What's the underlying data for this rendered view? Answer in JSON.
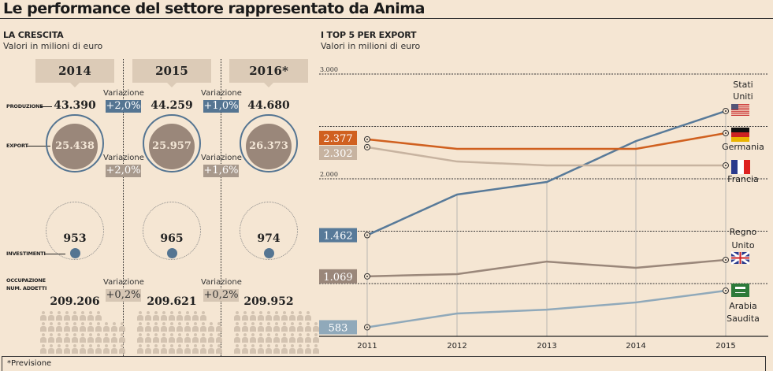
{
  "title": "Le performance del settore rappresentato da Anima",
  "left": {
    "heading": "LA CRESCITA",
    "subtitle": "Valori in milioni di euro",
    "row_labels": {
      "produzione": "PRODUZIONE",
      "export": "EXPORT",
      "investimenti": "INVESTIMENTI",
      "occupazione": "OCCUPAZIONE",
      "addetti": "NUM. ADDETTI"
    },
    "variation_label": "Variazione",
    "years": [
      {
        "year": "2014",
        "produzione": "43.390",
        "export": "25.438",
        "investimenti": "953",
        "addetti": "209.206",
        "people_first_row": 8
      },
      {
        "year": "2015",
        "produzione": "44.259",
        "export": "25.957",
        "investimenti": "965",
        "addetti": "209.621",
        "people_first_row": 9
      },
      {
        "year": "2016*",
        "produzione": "44.680",
        "export": "26.373",
        "investimenti": "974",
        "addetti": "209.952",
        "people_first_row": 10
      }
    ],
    "variations": [
      {
        "produzione": "+2,0%",
        "export": "+2,0%",
        "addetti": "+0,2%"
      },
      {
        "produzione": "+1,0%",
        "export": "+1,6%",
        "addetti": "+0,2%"
      }
    ]
  },
  "footnote": "*Previsione",
  "chart_data": {
    "type": "line",
    "title": "I TOP 5 PER EXPORT",
    "subtitle": "Valori in milioni di euro",
    "x": [
      "2011",
      "2012",
      "2013",
      "2014",
      "2015"
    ],
    "ylim": [
      500,
      3000
    ],
    "yticks": [
      {
        "value": 3000,
        "label": "3.000"
      },
      {
        "value": 2000,
        "label": "2.000"
      }
    ],
    "gridlines": [
      3000,
      2500,
      2000,
      1500,
      1000
    ],
    "series": [
      {
        "name": "Stati Uniti",
        "label_lines": [
          "Stati",
          "Uniti"
        ],
        "start_label": "1.462",
        "color": "#587a99",
        "values": [
          1462,
          1850,
          1970,
          2360,
          2647
        ]
      },
      {
        "name": "Germania",
        "label_lines": [
          "Germania"
        ],
        "start_label": "2.377",
        "color": "#d0601f",
        "values": [
          2377,
          2286,
          2286,
          2286,
          2436
        ]
      },
      {
        "name": "Francia",
        "label_lines": [
          "Francia"
        ],
        "start_label": "2.302",
        "color": "#c7b3a0",
        "values": [
          2302,
          2165,
          2128,
          2128,
          2128
        ]
      },
      {
        "name": "Regno Unito",
        "label_lines": [
          "Regno",
          "Unito"
        ],
        "start_label": "1.069",
        "color": "#9a877a",
        "values": [
          1069,
          1090,
          1210,
          1150,
          1226
        ]
      },
      {
        "name": "Arabia Saudita",
        "label_lines": [
          "Arabia",
          "Saudita"
        ],
        "start_label": "583",
        "color": "#90a9ba",
        "values": [
          583,
          714,
          751,
          820,
          932
        ]
      }
    ]
  }
}
